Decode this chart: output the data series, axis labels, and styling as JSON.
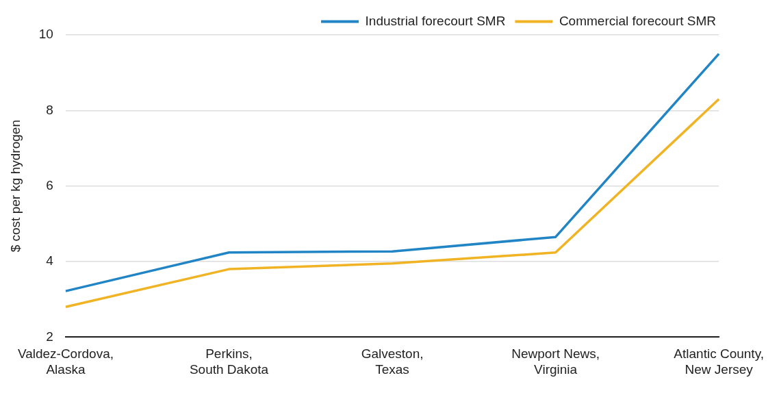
{
  "chart_data": {
    "type": "line",
    "ylabel": "$ cost per kg hydrogen",
    "categories": [
      "Valdez-Cordova,\nAlaska",
      "Perkins,\nSouth Dakota",
      "Galveston,\nTexas",
      "Newport News,\nVirginia",
      "Atlantic County,\nNew Jersey"
    ],
    "series": [
      {
        "name": "Industrial forecourt SMR",
        "color": "#2185c5",
        "values": [
          3.22,
          4.24,
          4.27,
          4.65,
          9.5
        ]
      },
      {
        "name": "Commercial forecourt SMR",
        "color": "#f0b323",
        "values": [
          2.8,
          3.8,
          3.95,
          4.24,
          8.3
        ]
      }
    ],
    "ylim": [
      2,
      10
    ],
    "yticks": [
      2,
      4,
      6,
      8,
      10
    ],
    "grid": "y",
    "legend": "top right",
    "marker": "none",
    "line_style": "solid"
  }
}
